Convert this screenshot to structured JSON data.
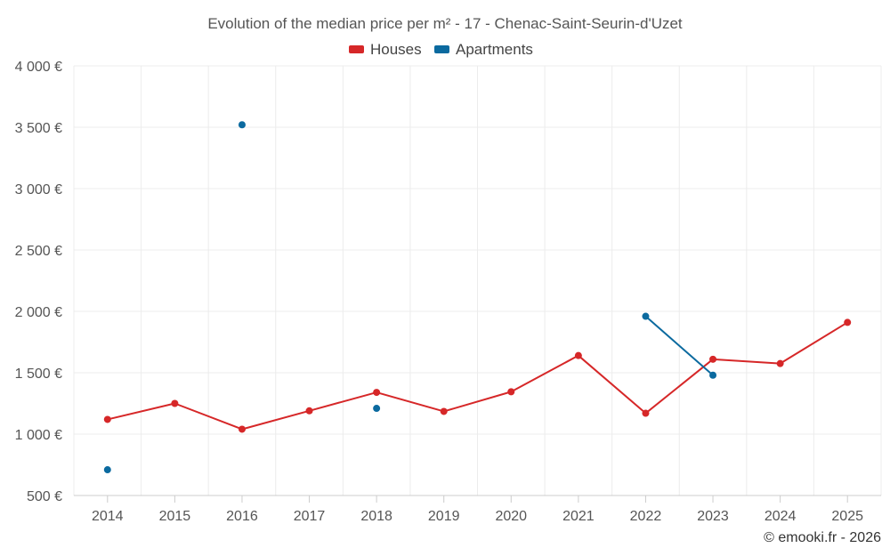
{
  "chart_data": {
    "type": "line",
    "title": "Evolution of the median price per m² - 17 - Chenac-Saint-Seurin-d'Uzet",
    "categories": [
      "2014",
      "2015",
      "2016",
      "2017",
      "2018",
      "2019",
      "2020",
      "2021",
      "2022",
      "2023",
      "2024",
      "2025"
    ],
    "ylim": [
      500,
      4000
    ],
    "yticks": [
      500,
      1000,
      1500,
      2000,
      2500,
      3000,
      3500,
      4000
    ],
    "ytick_labels": [
      "500 €",
      "1 000 €",
      "1 500 €",
      "2 000 €",
      "2 500 €",
      "3 000 €",
      "3 500 €",
      "4 000 €"
    ],
    "grid": true,
    "legend_position": "top-center",
    "series": [
      {
        "name": "Houses",
        "color": "#d62728",
        "values": [
          1120,
          1250,
          1040,
          1190,
          1340,
          1185,
          1345,
          1640,
          1170,
          1610,
          1575,
          1910
        ]
      },
      {
        "name": "Apartments",
        "color": "#0b6a9f",
        "values": [
          710,
          null,
          3520,
          null,
          1210,
          null,
          null,
          null,
          1960,
          1480,
          null,
          null
        ]
      }
    ],
    "credit": "© emooki.fr - 2026"
  }
}
